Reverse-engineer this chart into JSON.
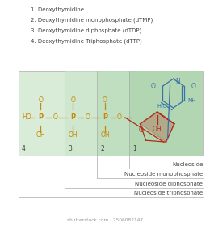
{
  "title_lines": [
    "1. Deoxythymidine",
    "2. Deoxythymidine monophosphate (dTMP)",
    "3. Deoxythymidine diphosphate (dTDP)",
    "4. Deoxythymidine Triphosphate (dTTP)"
  ],
  "bottom_labels": [
    "Nucleoside",
    "Nucleoside monophosphate",
    "Nucleoside diphosphate",
    "Nucleoside triphosphate"
  ],
  "numbers": [
    "1",
    "2",
    "3",
    "4"
  ],
  "phosphate_color": "#c8860a",
  "sugar_color": "#b02a1a",
  "base_color": "#3a72a8",
  "text_color": "#444444",
  "bg_lightest": "#d8ecd8",
  "bg_light": "#c8e4c8",
  "bg_medium": "#b8dab8",
  "bg_darker": "#a8d0a8",
  "grid_color": "#aaaaaa",
  "watermark_color": "#999999"
}
